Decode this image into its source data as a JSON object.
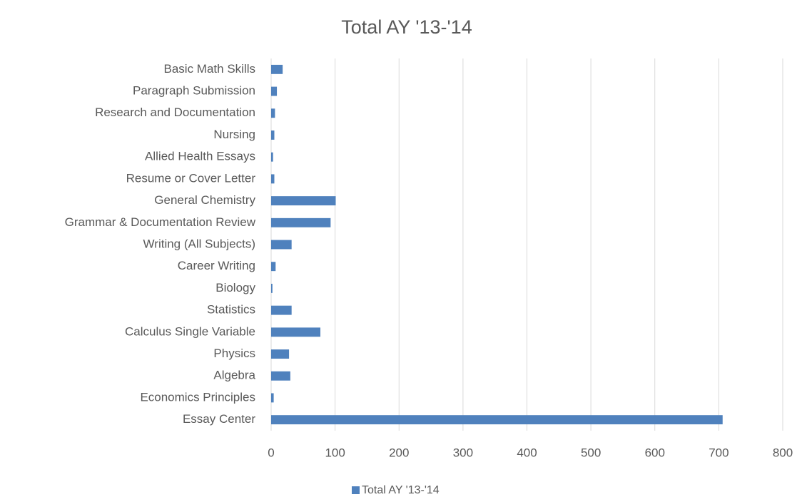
{
  "chart_data": {
    "type": "bar",
    "orientation": "horizontal",
    "title": "Total AY '13-'14",
    "categories": [
      "Basic Math Skills",
      "Paragraph Submission",
      "Research and Documentation",
      "Nursing",
      "Allied Health Essays",
      "Resume or Cover Letter",
      "General Chemistry",
      "Grammar & Documentation Review",
      "Writing (All Subjects)",
      "Career Writing",
      "Biology",
      "Statistics",
      "Calculus Single Variable",
      "Physics",
      "Algebra",
      "Economics Principles",
      "Essay Center"
    ],
    "series": [
      {
        "name": "Total AY '13-'14",
        "color": "#4f81bd",
        "values": [
          18,
          9,
          6,
          5,
          3,
          5,
          101,
          93,
          32,
          7,
          2,
          32,
          77,
          28,
          30,
          4,
          706
        ]
      }
    ],
    "xlim": [
      0,
      800
    ],
    "xticks": [
      0,
      100,
      200,
      300,
      400,
      500,
      600,
      700,
      800
    ],
    "grid": true,
    "legend": "bottom"
  }
}
